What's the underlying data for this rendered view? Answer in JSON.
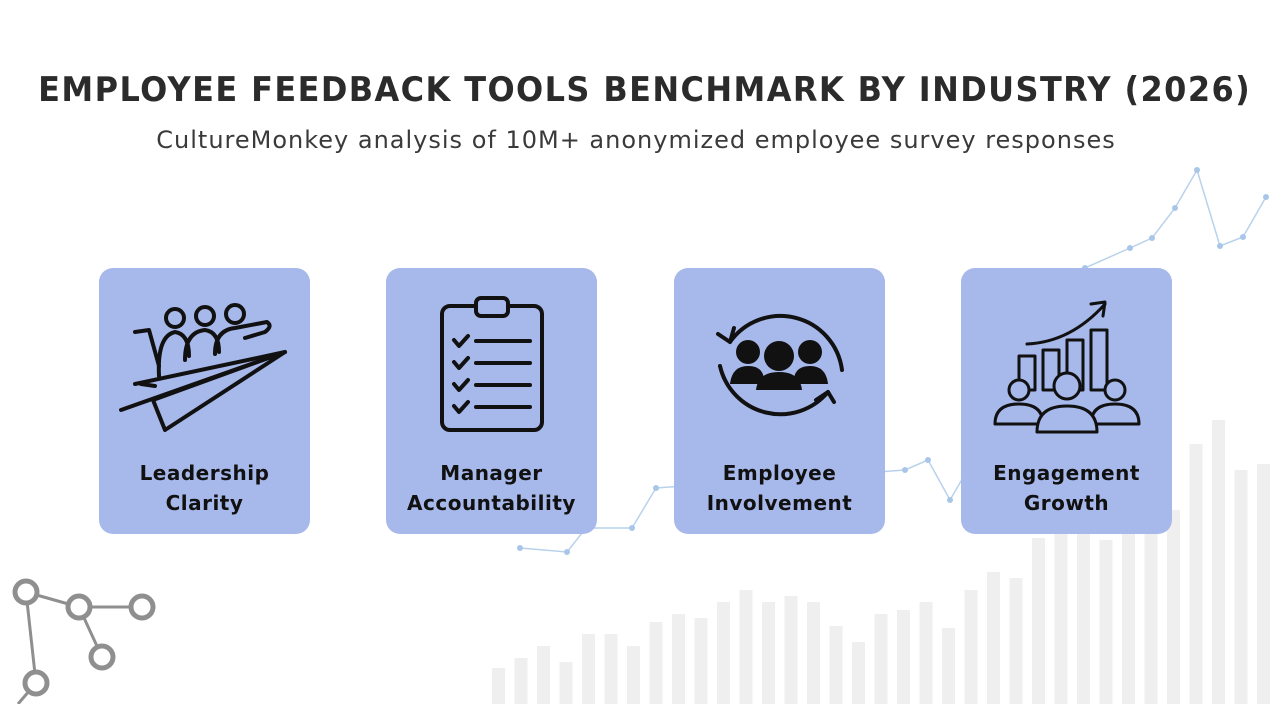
{
  "title": "EMPLOYEE FEEDBACK TOOLS BENCHMARK BY INDUSTRY (2026)",
  "subtitle": "CultureMonkey analysis of 10M+ anonymized employee survey responses",
  "colors": {
    "card_background": "#a7b8eb",
    "title": "#2b2b2b",
    "decorative_bars": "#efefef",
    "decorative_line": "#a9c6e8"
  },
  "cards": [
    {
      "icon": "leadership-paper-plane-icon",
      "label_line1": "Leadership",
      "label_line2": "Clarity"
    },
    {
      "icon": "clipboard-checklist-icon",
      "label_line1": "Manager",
      "label_line2": "Accountability"
    },
    {
      "icon": "team-cycle-icon",
      "label_line1": "Employee",
      "label_line2": "Involvement"
    },
    {
      "icon": "growth-chart-people-icon",
      "label_line1": "Engagement",
      "label_line2": "Growth"
    }
  ]
}
